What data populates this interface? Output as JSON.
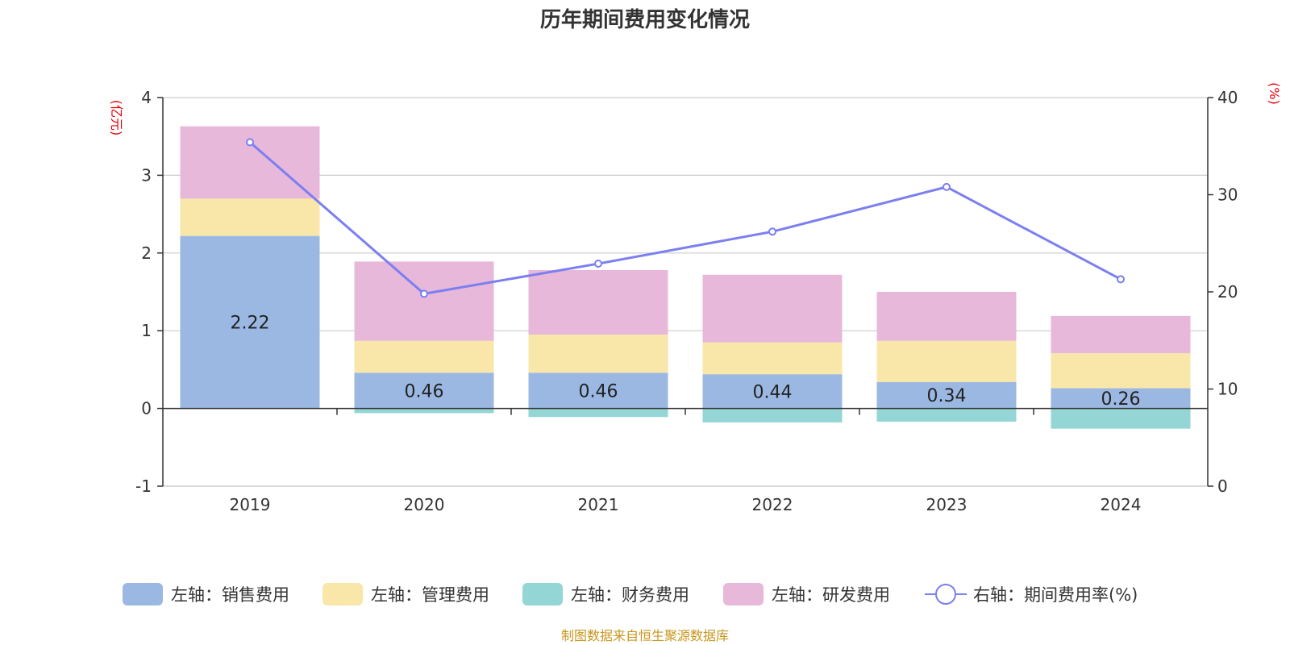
{
  "chart_data": {
    "type": "bar",
    "stacked": true,
    "title": "历年期间费用变化情况",
    "categories": [
      "2019",
      "2020",
      "2021",
      "2022",
      "2023",
      "2024"
    ],
    "left_axis": {
      "unit": "(亿元)",
      "ylim": [
        -1,
        4
      ],
      "ticks": [
        -1,
        0,
        1,
        2,
        3,
        4
      ]
    },
    "right_axis": {
      "unit": "(%)",
      "ylim": [
        0,
        40
      ],
      "ticks": [
        0,
        10,
        20,
        30,
        40
      ]
    },
    "series": [
      {
        "name": "左轴：销售费用",
        "axis": "left",
        "type": "bar",
        "color": "#9bb8e3",
        "values": [
          2.22,
          0.46,
          0.46,
          0.44,
          0.34,
          0.26
        ],
        "show_labels": true
      },
      {
        "name": "左轴：管理费用",
        "axis": "left",
        "type": "bar",
        "color": "#f8e7a8",
        "values": [
          0.48,
          0.41,
          0.49,
          0.41,
          0.53,
          0.45
        ]
      },
      {
        "name": "左轴：财务费用",
        "axis": "left",
        "type": "bar",
        "color": "#94d5d5",
        "values": [
          0.0,
          -0.06,
          -0.11,
          -0.18,
          -0.17,
          -0.26
        ]
      },
      {
        "name": "左轴：研发费用",
        "axis": "left",
        "type": "bar",
        "color": "#e7b8da",
        "values": [
          0.93,
          1.02,
          0.83,
          0.87,
          0.63,
          0.48
        ]
      },
      {
        "name": "右轴：期间费用率(%)",
        "axis": "right",
        "type": "line",
        "color": "#7b7ff0",
        "values": [
          35.4,
          19.8,
          22.9,
          26.2,
          30.8,
          21.3
        ]
      }
    ],
    "grid": true,
    "legend_position": "bottom"
  },
  "source_note": "制图数据来自恒生聚源数据库"
}
